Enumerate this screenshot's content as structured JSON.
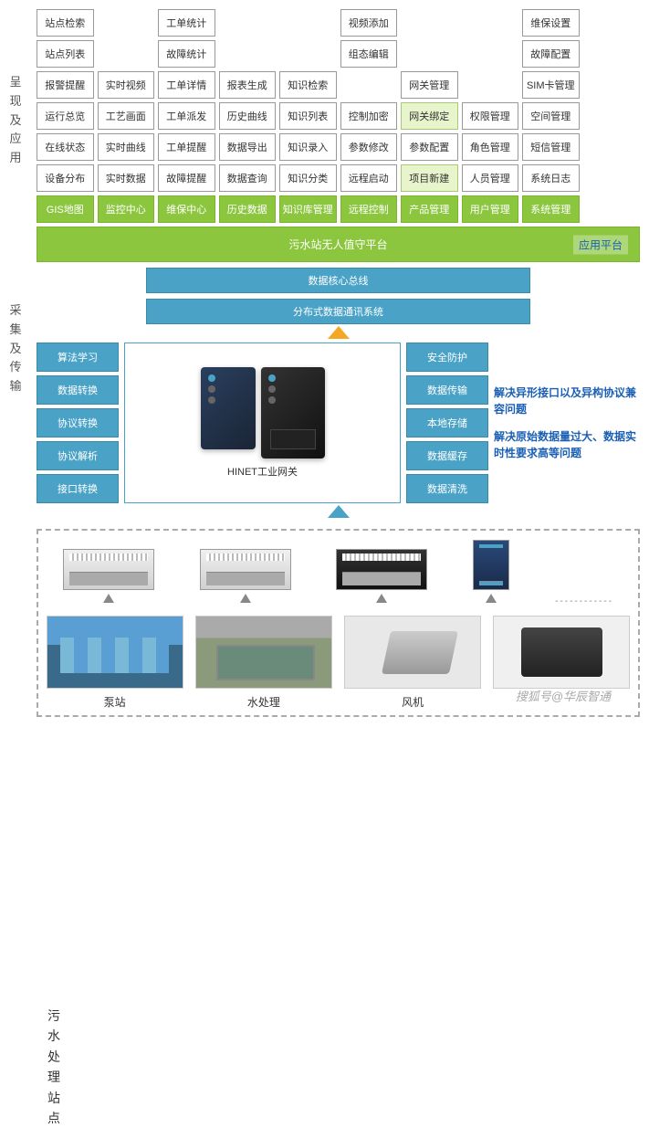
{
  "section_labels": {
    "l1": "呈现及应用",
    "l2": "采集及传输",
    "l3": "污水处理站点"
  },
  "grid": [
    [
      "站点检索",
      "",
      "工单统计",
      "",
      "",
      "视频添加",
      "",
      "",
      "维保设置",
      ""
    ],
    [
      "站点列表",
      "",
      "故障统计",
      "",
      "",
      "组态编辑",
      "",
      "",
      "故障配置",
      ""
    ],
    [
      "报警提醒",
      "实时视频",
      "工单详情",
      "报表生成",
      "知识检索",
      "",
      "网关管理",
      "",
      "SIM卡管理",
      ""
    ],
    [
      "运行总览",
      "工艺画面",
      "工单派发",
      "历史曲线",
      "知识列表",
      "控制加密",
      "网关绑定",
      "权限管理",
      "空间管理",
      ""
    ],
    [
      "在线状态",
      "实时曲线",
      "工单提醒",
      "数据导出",
      "知识录入",
      "参数修改",
      "参数配置",
      "角色管理",
      "短信管理",
      ""
    ],
    [
      "设备分布",
      "实时数据",
      "故障提醒",
      "数据查询",
      "知识分类",
      "远程启动",
      "项目新建",
      "人员管理",
      "系统日志",
      ""
    ]
  ],
  "grid_hl": [
    [
      3,
      6
    ],
    [
      5,
      6
    ]
  ],
  "green_row": [
    "GIS地图",
    "监控中心",
    "维保中心",
    "历史数据",
    "知识库管理",
    "远程控制",
    "产品管理",
    "用户管理",
    "系统管理",
    ""
  ],
  "platform": {
    "title": "污水站无人值守平台",
    "tag": "应用平台"
  },
  "bus": {
    "b1": "数据核心总线",
    "b2": "分布式数据通讯系统"
  },
  "mid_left": [
    "算法学习",
    "数据转换",
    "协议转换",
    "协议解析",
    "接口转换"
  ],
  "mid_right": [
    "安全防护",
    "数据传输",
    "本地存储",
    "数据缓存",
    "数据清洗"
  ],
  "mid_center_label": "HINET工业网关",
  "mid_side": {
    "t1": "解决异形接口以及异构协议兼容问题",
    "t2": "解决原始数据量过大、数据实时性要求高等问题"
  },
  "plc_dots": "------------",
  "photos": {
    "p1": "泵站",
    "p2": "水处理",
    "p3": "风机",
    "p4": ""
  },
  "watermark": "搜狐号@华辰智通",
  "colors": {
    "green": "#8cc63f",
    "blue": "#4aa3c7",
    "link": "#1a5fb4",
    "orange": "#f5a623"
  }
}
